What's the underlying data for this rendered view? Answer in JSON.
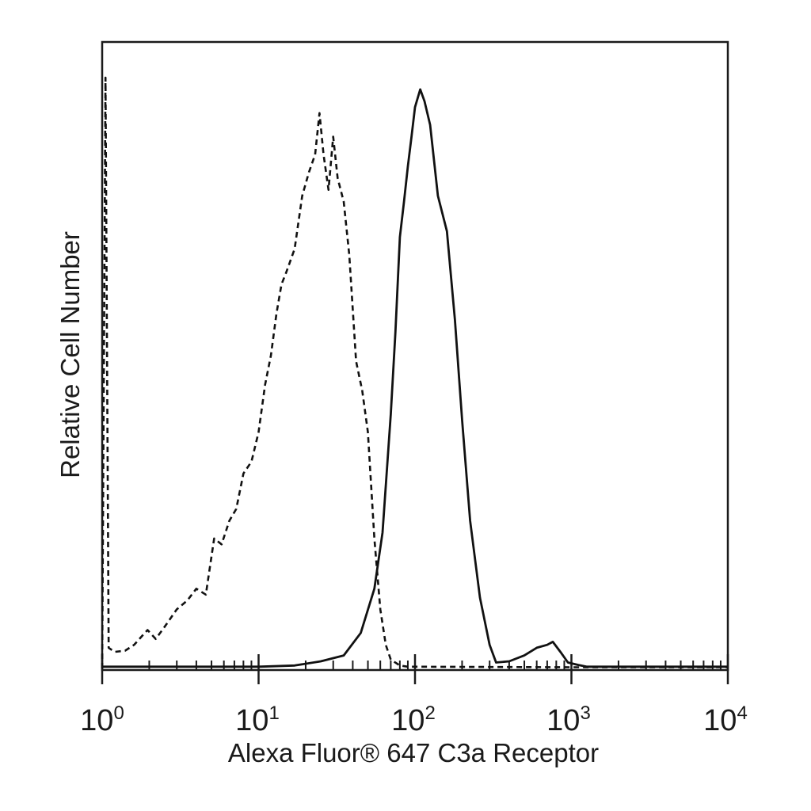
{
  "chart_data": {
    "type": "area",
    "title": "",
    "xlabel": "Alexa Fluor® 647 C3a Receptor",
    "ylabel": "Relative Cell Number",
    "x_scale": "log",
    "xlim": [
      1,
      10000
    ],
    "ylim": [
      0,
      100
    ],
    "grid": false,
    "x_ticks": [
      {
        "base": "10",
        "exp": "0",
        "value": 1
      },
      {
        "base": "10",
        "exp": "1",
        "value": 10
      },
      {
        "base": "10",
        "exp": "2",
        "value": 100
      },
      {
        "base": "10",
        "exp": "3",
        "value": 1000
      },
      {
        "base": "10",
        "exp": "4",
        "value": 10000
      }
    ],
    "series": [
      {
        "line_style": "dashed",
        "x": [
          1.0,
          1.05,
          1.1,
          1.2,
          1.4,
          1.6,
          1.8,
          1.95,
          2.2,
          2.5,
          3.0,
          3.5,
          4.0,
          4.6,
          5.2,
          5.8,
          6.5,
          7.2,
          8.0,
          9.0,
          10.0,
          11.0,
          12.0,
          13.0,
          14.0,
          15.0,
          17.0,
          19.0,
          21.0,
          23.0,
          24.5,
          26.0,
          28.0,
          30.0,
          32.0,
          35.0,
          38.0,
          42.0,
          46.0,
          50.0,
          55.0,
          60.0,
          65.0,
          70.0,
          80.0,
          90.0,
          100.0,
          1000.0,
          10000.0
        ],
        "y": [
          0,
          100,
          3.5,
          2.8,
          3.0,
          4.0,
          5.5,
          6.5,
          5.0,
          7.0,
          10.0,
          11.5,
          13.5,
          12.5,
          22.0,
          21.0,
          25.0,
          27.0,
          33.0,
          35.0,
          40.0,
          48.0,
          53.0,
          60.0,
          65.0,
          67.0,
          71.0,
          80.0,
          84.0,
          87.0,
          94.0,
          87.0,
          81.0,
          90.0,
          83.0,
          79.0,
          70.0,
          52.0,
          47.0,
          40.0,
          22.0,
          10.0,
          4.0,
          1.5,
          0.5,
          0.3,
          0.3,
          0.2,
          0.2
        ]
      },
      {
        "line_style": "solid",
        "x": [
          1.0,
          10.0,
          17.0,
          25.0,
          35.0,
          45.0,
          55.0,
          62.0,
          70.0,
          75.0,
          80.0,
          85.0,
          90.0,
          95.0,
          100.0,
          108.0,
          115.0,
          125.0,
          140.0,
          160.0,
          180.0,
          200.0,
          225.0,
          260.0,
          300.0,
          330.0,
          400.0,
          500.0,
          600.0,
          700.0,
          760.0,
          850.0,
          950.0,
          1100.0,
          1250.0,
          10000.0
        ],
        "y": [
          0.3,
          0.3,
          0.5,
          1.2,
          2.2,
          6.0,
          13.5,
          23.0,
          43.0,
          57.0,
          73.0,
          79.0,
          85.0,
          90.0,
          95.0,
          98.0,
          96.0,
          92.0,
          80.0,
          74.0,
          59.0,
          42.0,
          25.0,
          12.0,
          4.0,
          1.0,
          1.2,
          2.2,
          3.5,
          4.0,
          4.5,
          2.8,
          1.0,
          0.6,
          0.3,
          0.3
        ]
      }
    ]
  }
}
